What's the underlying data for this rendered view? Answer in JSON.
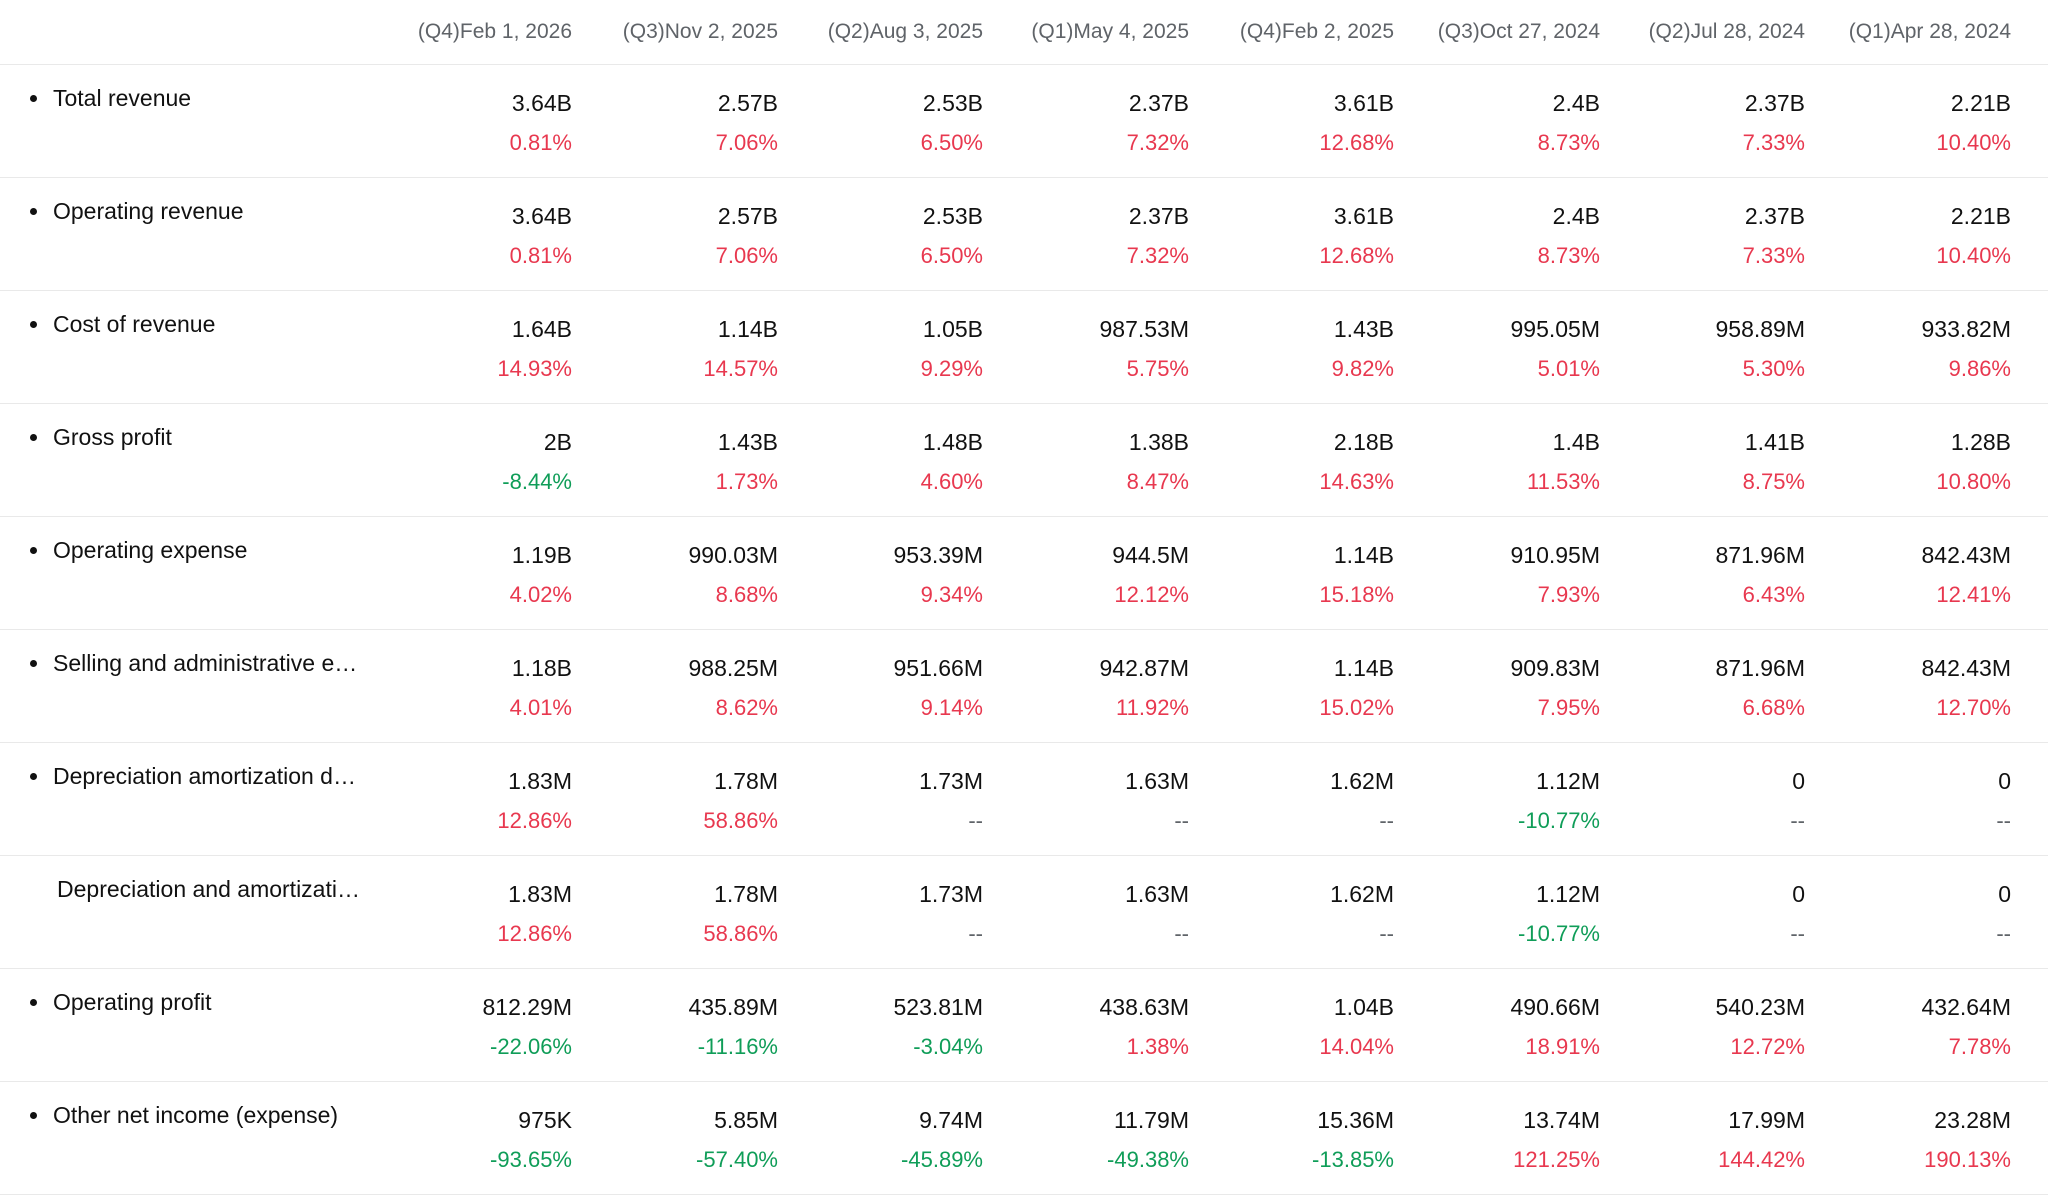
{
  "columns": [
    "(Q4)Feb 1, 2026",
    "(Q3)Nov 2, 2025",
    "(Q2)Aug 3, 2025",
    "(Q1)May 4, 2025",
    "(Q4)Feb 2, 2025",
    "(Q3)Oct 27, 2024",
    "(Q2)Jul 28, 2024",
    "(Q1)Apr 28, 2024"
  ],
  "colors": {
    "increase": "#e8384f",
    "decrease": "#0f9d58",
    "neutral": "#5f6368"
  },
  "rows": [
    {
      "label": "Total revenue",
      "bullet": true,
      "values": [
        "3.64B",
        "2.57B",
        "2.53B",
        "2.37B",
        "3.61B",
        "2.4B",
        "2.37B",
        "2.21B"
      ],
      "changes": [
        "0.81%",
        "7.06%",
        "6.50%",
        "7.32%",
        "12.68%",
        "8.73%",
        "7.33%",
        "10.40%"
      ]
    },
    {
      "label": "Operating revenue",
      "bullet": true,
      "values": [
        "3.64B",
        "2.57B",
        "2.53B",
        "2.37B",
        "3.61B",
        "2.4B",
        "2.37B",
        "2.21B"
      ],
      "changes": [
        "0.81%",
        "7.06%",
        "6.50%",
        "7.32%",
        "12.68%",
        "8.73%",
        "7.33%",
        "10.40%"
      ]
    },
    {
      "label": "Cost of revenue",
      "bullet": true,
      "values": [
        "1.64B",
        "1.14B",
        "1.05B",
        "987.53M",
        "1.43B",
        "995.05M",
        "958.89M",
        "933.82M"
      ],
      "changes": [
        "14.93%",
        "14.57%",
        "9.29%",
        "5.75%",
        "9.82%",
        "5.01%",
        "5.30%",
        "9.86%"
      ]
    },
    {
      "label": "Gross profit",
      "bullet": true,
      "values": [
        "2B",
        "1.43B",
        "1.48B",
        "1.38B",
        "2.18B",
        "1.4B",
        "1.41B",
        "1.28B"
      ],
      "changes": [
        "-8.44%",
        "1.73%",
        "4.60%",
        "8.47%",
        "14.63%",
        "11.53%",
        "8.75%",
        "10.80%"
      ]
    },
    {
      "label": "Operating expense",
      "bullet": true,
      "values": [
        "1.19B",
        "990.03M",
        "953.39M",
        "944.5M",
        "1.14B",
        "910.95M",
        "871.96M",
        "842.43M"
      ],
      "changes": [
        "4.02%",
        "8.68%",
        "9.34%",
        "12.12%",
        "15.18%",
        "7.93%",
        "6.43%",
        "12.41%"
      ]
    },
    {
      "label": "Selling and administrative e…",
      "bullet": true,
      "values": [
        "1.18B",
        "988.25M",
        "951.66M",
        "942.87M",
        "1.14B",
        "909.83M",
        "871.96M",
        "842.43M"
      ],
      "changes": [
        "4.01%",
        "8.62%",
        "9.14%",
        "11.92%",
        "15.02%",
        "7.95%",
        "6.68%",
        "12.70%"
      ]
    },
    {
      "label": "Depreciation amortization d…",
      "bullet": true,
      "values": [
        "1.83M",
        "1.78M",
        "1.73M",
        "1.63M",
        "1.62M",
        "1.12M",
        "0",
        "0"
      ],
      "changes": [
        "12.86%",
        "58.86%",
        "--",
        "--",
        "--",
        "-10.77%",
        "--",
        "--"
      ]
    },
    {
      "label": "Depreciation and amortizati…",
      "bullet": false,
      "values": [
        "1.83M",
        "1.78M",
        "1.73M",
        "1.63M",
        "1.62M",
        "1.12M",
        "0",
        "0"
      ],
      "changes": [
        "12.86%",
        "58.86%",
        "--",
        "--",
        "--",
        "-10.77%",
        "--",
        "--"
      ]
    },
    {
      "label": "Operating profit",
      "bullet": true,
      "values": [
        "812.29M",
        "435.89M",
        "523.81M",
        "438.63M",
        "1.04B",
        "490.66M",
        "540.23M",
        "432.64M"
      ],
      "changes": [
        "-22.06%",
        "-11.16%",
        "-3.04%",
        "1.38%",
        "14.04%",
        "18.91%",
        "12.72%",
        "7.78%"
      ]
    },
    {
      "label": "Other net income (expense)",
      "bullet": true,
      "values": [
        "975K",
        "5.85M",
        "9.74M",
        "11.79M",
        "15.36M",
        "13.74M",
        "17.99M",
        "23.28M"
      ],
      "changes": [
        "-93.65%",
        "-57.40%",
        "-45.89%",
        "-49.38%",
        "-13.85%",
        "121.25%",
        "144.42%",
        "190.13%"
      ]
    }
  ]
}
